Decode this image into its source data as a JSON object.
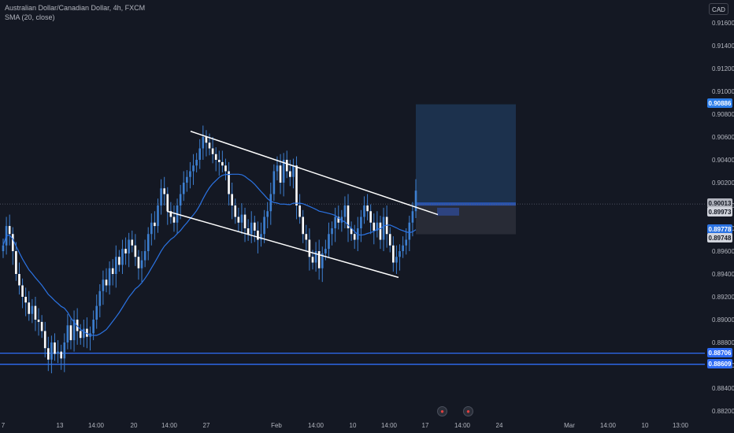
{
  "header": {
    "title": "Australian Dollar/Canadian Dollar, 4h, FXCM",
    "indicator": "SMA (20, close)"
  },
  "currency_button": "CAD",
  "icons": {
    "events": "economic-event-icon"
  },
  "colors": {
    "background": "#141823",
    "candle": "#3d7fd0",
    "sma": "#2b73e3",
    "channel": "#ffffff",
    "support_line": "#2f6cf5",
    "target_zone": "#1f3a5c",
    "stop_zone": "#2a2e39"
  },
  "chart_data": {
    "type": "candlestick",
    "symbol": "Australian Dollar/Canadian Dollar",
    "timeframe": "4h",
    "source": "FXCM",
    "ylim": [
      0.882,
      0.917
    ],
    "y_ticks": [
      "0.91600",
      "0.91400",
      "0.91200",
      "0.91000",
      "0.90800",
      "0.90600",
      "0.90400",
      "0.90200",
      "0.90000",
      "0.89800",
      "0.89600",
      "0.89400",
      "0.89200",
      "0.89000",
      "0.88800",
      "0.88600",
      "0.88400",
      "0.88200"
    ],
    "x_ticks": [
      "7",
      "13",
      "14:00",
      "20",
      "14:00",
      "27",
      "Feb",
      "14:00",
      "10",
      "14:00",
      "17",
      "14:00",
      "24",
      "Mar",
      "14:00",
      "10",
      "13:00"
    ],
    "price_tags": [
      {
        "value": "0.90886",
        "kind": "target"
      },
      {
        "value": "0.90013",
        "kind": "last"
      },
      {
        "value": "0.89973",
        "kind": "close"
      },
      {
        "value": "0.89778",
        "kind": "sma"
      },
      {
        "value": "0.89748",
        "kind": "stop"
      },
      {
        "value": "0.88706",
        "kind": "support"
      },
      {
        "value": "0.88609",
        "kind": "support"
      }
    ],
    "horizontal_lines": [
      0.88706,
      0.88609
    ],
    "channel_upper": [
      [
        0.9065,
        0.8992
      ]
    ],
    "channel_lower": [
      [
        0.8995,
        0.8937
      ]
    ],
    "position": {
      "entry": 0.90013,
      "target": 0.90886,
      "stop": 0.89748
    },
    "candles_close": [
      0.8965,
      0.8982,
      0.8975,
      0.896,
      0.894,
      0.893,
      0.892,
      0.8915,
      0.8905,
      0.8912,
      0.89,
      0.8898,
      0.889,
      0.8875,
      0.8865,
      0.888,
      0.887,
      0.8872,
      0.8866,
      0.888,
      0.8895,
      0.8882,
      0.89,
      0.889,
      0.8884,
      0.8892,
      0.8885,
      0.8888,
      0.89,
      0.8912,
      0.8925,
      0.8935,
      0.893,
      0.8945,
      0.894,
      0.8955,
      0.8948,
      0.8962,
      0.8958,
      0.897,
      0.8965,
      0.8955,
      0.8945,
      0.8952,
      0.896,
      0.8975,
      0.8985,
      0.8982,
      0.9,
      0.9015,
      0.901,
      0.8995,
      0.899,
      0.8985,
      0.9,
      0.901,
      0.902,
      0.9025,
      0.903,
      0.9035,
      0.904,
      0.905,
      0.906,
      0.9055,
      0.905,
      0.9045,
      0.904,
      0.9038,
      0.9035,
      0.903,
      0.901,
      0.9,
      0.899,
      0.8985,
      0.8992,
      0.898,
      0.8975,
      0.8985,
      0.8978,
      0.897,
      0.8975,
      0.899,
      0.8995,
      0.901,
      0.903,
      0.9035,
      0.902,
      0.904,
      0.903,
      0.9025,
      0.9035,
      0.9,
      0.899,
      0.8975,
      0.897,
      0.8955,
      0.895,
      0.896,
      0.8945,
      0.8958,
      0.8962,
      0.8975,
      0.898,
      0.899,
      0.8985,
      0.899,
      0.9,
      0.898,
      0.8975,
      0.897,
      0.898,
      0.899,
      0.9,
      0.8995,
      0.8985,
      0.8978,
      0.8985,
      0.897,
      0.899,
      0.8975,
      0.8965,
      0.895,
      0.8955,
      0.896,
      0.8965,
      0.897,
      0.8985,
      0.8995,
      0.9013
    ]
  }
}
